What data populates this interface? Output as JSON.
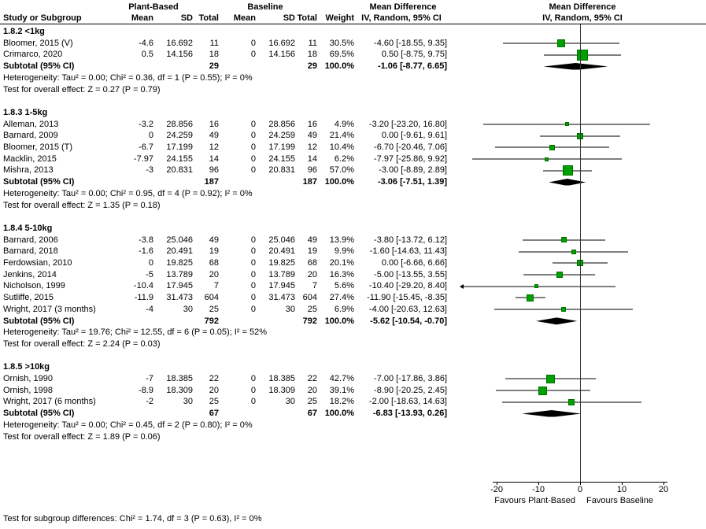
{
  "header": {
    "group1": "Plant-Based",
    "group2": "Baseline",
    "md": "Mean Difference",
    "method": "IV, Random, 95% CI",
    "col_study": "Study or Subgroup",
    "col_mean": "Mean",
    "col_sd": "SD",
    "col_total": "Total",
    "col_weight": "Weight"
  },
  "footer": "Test for subgroup differences: Chi² = 1.74, df = 3 (P = 0.63), I² = 0%",
  "colors": {
    "square": "#00A000",
    "square_border": "#007000",
    "diamond": "#000000",
    "ci_line": "#000000",
    "zero_line": "#333333"
  },
  "chart_data": {
    "type": "forest",
    "effect_measure": "Mean Difference",
    "model": "IV, Random, 95% CI",
    "axis": {
      "ticks": [
        -20,
        -10,
        0,
        10,
        20
      ],
      "line_span": [
        -21,
        21
      ],
      "xlim": [
        -28.5,
        29.8
      ],
      "left_label": "Favours Plant-Based",
      "right_label": "Favours Baseline"
    },
    "subgroups": [
      {
        "label": "1.8.2 <1kg",
        "studies": [
          {
            "name": "Bloomer, 2015 (V)",
            "mean1": "-4.6",
            "sd1": "16.692",
            "n1": "11",
            "mean2": "0",
            "sd2": "16.692",
            "n2": "11",
            "weight": "30.5%",
            "ci_text": "-4.60 [-18.55, 9.35]",
            "est": -4.6,
            "lo": -18.55,
            "hi": 9.35,
            "w": 30.5
          },
          {
            "name": "Crimarco, 2020",
            "mean1": "0.5",
            "sd1": "14.156",
            "n1": "18",
            "mean2": "0",
            "sd2": "14.156",
            "n2": "18",
            "weight": "69.5%",
            "ci_text": "0.50 [-8.75, 9.75]",
            "est": 0.5,
            "lo": -8.75,
            "hi": 9.75,
            "w": 69.5
          }
        ],
        "subtotal": {
          "label": "Subtotal (95% CI)",
          "n1": "29",
          "n2": "29",
          "weight": "100.0%",
          "ci_text": "-1.06 [-8.77, 6.65]",
          "est": -1.06,
          "lo": -8.77,
          "hi": 6.65
        },
        "heterogeneity": "Heterogeneity: Tau² = 0.00; Chi² = 0.36, df = 1 (P = 0.55); I² = 0%",
        "overall": "Test for overall effect: Z = 0.27 (P = 0.79)"
      },
      {
        "label": "1.8.3 1-5kg",
        "studies": [
          {
            "name": "Alleman, 2013",
            "mean1": "-3.2",
            "sd1": "28.856",
            "n1": "16",
            "mean2": "0",
            "sd2": "28.856",
            "n2": "16",
            "weight": "4.9%",
            "ci_text": "-3.20 [-23.20, 16.80]",
            "est": -3.2,
            "lo": -23.2,
            "hi": 16.8,
            "w": 4.9
          },
          {
            "name": "Barnard, 2009",
            "mean1": "0",
            "sd1": "24.259",
            "n1": "49",
            "mean2": "0",
            "sd2": "24.259",
            "n2": "49",
            "weight": "21.4%",
            "ci_text": "0.00 [-9.61, 9.61]",
            "est": 0,
            "lo": -9.61,
            "hi": 9.61,
            "w": 21.4
          },
          {
            "name": "Bloomer, 2015 (T)",
            "mean1": "-6.7",
            "sd1": "17.199",
            "n1": "12",
            "mean2": "0",
            "sd2": "17.199",
            "n2": "12",
            "weight": "10.4%",
            "ci_text": "-6.70 [-20.46, 7.06]",
            "est": -6.7,
            "lo": -20.46,
            "hi": 7.06,
            "w": 10.4
          },
          {
            "name": "Macklin, 2015",
            "mean1": "-7.97",
            "sd1": "24.155",
            "n1": "14",
            "mean2": "0",
            "sd2": "24.155",
            "n2": "14",
            "weight": "6.2%",
            "ci_text": "-7.97 [-25.86, 9.92]",
            "est": -7.97,
            "lo": -25.86,
            "hi": 9.92,
            "w": 6.2
          },
          {
            "name": "Mishra, 2013",
            "mean1": "-3",
            "sd1": "20.831",
            "n1": "96",
            "mean2": "0",
            "sd2": "20.831",
            "n2": "96",
            "weight": "57.0%",
            "ci_text": "-3.00 [-8.89, 2.89]",
            "est": -3,
            "lo": -8.89,
            "hi": 2.89,
            "w": 57.0
          }
        ],
        "subtotal": {
          "label": "Subtotal (95% CI)",
          "n1": "187",
          "n2": "187",
          "weight": "100.0%",
          "ci_text": "-3.06 [-7.51, 1.39]",
          "est": -3.06,
          "lo": -7.51,
          "hi": 1.39
        },
        "heterogeneity": "Heterogeneity: Tau² = 0.00; Chi² = 0.95, df = 4 (P = 0.92); I² = 0%",
        "overall": "Test for overall effect: Z = 1.35 (P = 0.18)"
      },
      {
        "label": "1.8.4 5-10kg",
        "studies": [
          {
            "name": "Barnard, 2006",
            "mean1": "-3.8",
            "sd1": "25.046",
            "n1": "49",
            "mean2": "0",
            "sd2": "25.046",
            "n2": "49",
            "weight": "13.9%",
            "ci_text": "-3.80 [-13.72, 6.12]",
            "est": -3.8,
            "lo": -13.72,
            "hi": 6.12,
            "w": 13.9
          },
          {
            "name": "Barnard, 2018",
            "mean1": "-1.6",
            "sd1": "20.491",
            "n1": "19",
            "mean2": "0",
            "sd2": "20.491",
            "n2": "19",
            "weight": "9.9%",
            "ci_text": "-1.60 [-14.63, 11.43]",
            "est": -1.6,
            "lo": -14.63,
            "hi": 11.43,
            "w": 9.9
          },
          {
            "name": "Ferdowsian, 2010",
            "mean1": "0",
            "sd1": "19.825",
            "n1": "68",
            "mean2": "0",
            "sd2": "19.825",
            "n2": "68",
            "weight": "20.1%",
            "ci_text": "0.00 [-6.66, 6.66]",
            "est": 0,
            "lo": -6.66,
            "hi": 6.66,
            "w": 20.1
          },
          {
            "name": "Jenkins, 2014",
            "mean1": "-5",
            "sd1": "13.789",
            "n1": "20",
            "mean2": "0",
            "sd2": "13.789",
            "n2": "20",
            "weight": "16.3%",
            "ci_text": "-5.00 [-13.55, 3.55]",
            "est": -5,
            "lo": -13.55,
            "hi": 3.55,
            "w": 16.3
          },
          {
            "name": "Nicholson, 1999",
            "mean1": "-10.4",
            "sd1": "17.945",
            "n1": "7",
            "mean2": "0",
            "sd2": "17.945",
            "n2": "7",
            "weight": "5.6%",
            "ci_text": "-10.40 [-29.20, 8.40]",
            "est": -10.4,
            "lo": -29.2,
            "hi": 8.4,
            "w": 5.6
          },
          {
            "name": "Sutliffe, 2015",
            "mean1": "-11.9",
            "sd1": "31.473",
            "n1": "604",
            "mean2": "0",
            "sd2": "31.473",
            "n2": "604",
            "weight": "27.4%",
            "ci_text": "-11.90 [-15.45, -8.35]",
            "est": -11.9,
            "lo": -15.45,
            "hi": -8.35,
            "w": 27.4
          },
          {
            "name": "Wright, 2017 (3 months)",
            "mean1": "-4",
            "sd1": "30",
            "n1": "25",
            "mean2": "0",
            "sd2": "30",
            "n2": "25",
            "weight": "6.9%",
            "ci_text": "-4.00 [-20.63, 12.63]",
            "est": -4,
            "lo": -20.63,
            "hi": 12.63,
            "w": 6.9
          }
        ],
        "subtotal": {
          "label": "Subtotal (95% CI)",
          "n1": "792",
          "n2": "792",
          "weight": "100.0%",
          "ci_text": "-5.62 [-10.54, -0.70]",
          "est": -5.62,
          "lo": -10.54,
          "hi": -0.7
        },
        "heterogeneity": "Heterogeneity: Tau² = 19.76; Chi² = 12.55, df = 6 (P = 0.05); I² = 52%",
        "overall": "Test for overall effect: Z = 2.24 (P = 0.03)"
      },
      {
        "label": "1.8.5 >10kg",
        "studies": [
          {
            "name": "Ornish, 1990",
            "mean1": "-7",
            "sd1": "18.385",
            "n1": "22",
            "mean2": "0",
            "sd2": "18.385",
            "n2": "22",
            "weight": "42.7%",
            "ci_text": "-7.00 [-17.86, 3.86]",
            "est": -7,
            "lo": -17.86,
            "hi": 3.86,
            "w": 42.7
          },
          {
            "name": "Ornish, 1998",
            "mean1": "-8.9",
            "sd1": "18.309",
            "n1": "20",
            "mean2": "0",
            "sd2": "18.309",
            "n2": "20",
            "weight": "39.1%",
            "ci_text": "-8.90 [-20.25, 2.45]",
            "est": -8.9,
            "lo": -20.25,
            "hi": 2.45,
            "w": 39.1
          },
          {
            "name": "Wright, 2017 (6 months)",
            "mean1": "-2",
            "sd1": "30",
            "n1": "25",
            "mean2": "0",
            "sd2": "30",
            "n2": "25",
            "weight": "18.2%",
            "ci_text": "-2.00 [-18.63, 14.63]",
            "est": -2,
            "lo": -18.63,
            "hi": 14.63,
            "w": 18.2
          }
        ],
        "subtotal": {
          "label": "Subtotal (95% CI)",
          "n1": "67",
          "n2": "67",
          "weight": "100.0%",
          "ci_text": "-6.83 [-13.93, 0.26]",
          "est": -6.83,
          "lo": -13.93,
          "hi": 0.26
        },
        "heterogeneity": "Heterogeneity: Tau² = 0.00; Chi² = 0.45, df = 2 (P = 0.80); I² = 0%",
        "overall": "Test for overall effect: Z = 1.89 (P = 0.06)"
      }
    ]
  }
}
